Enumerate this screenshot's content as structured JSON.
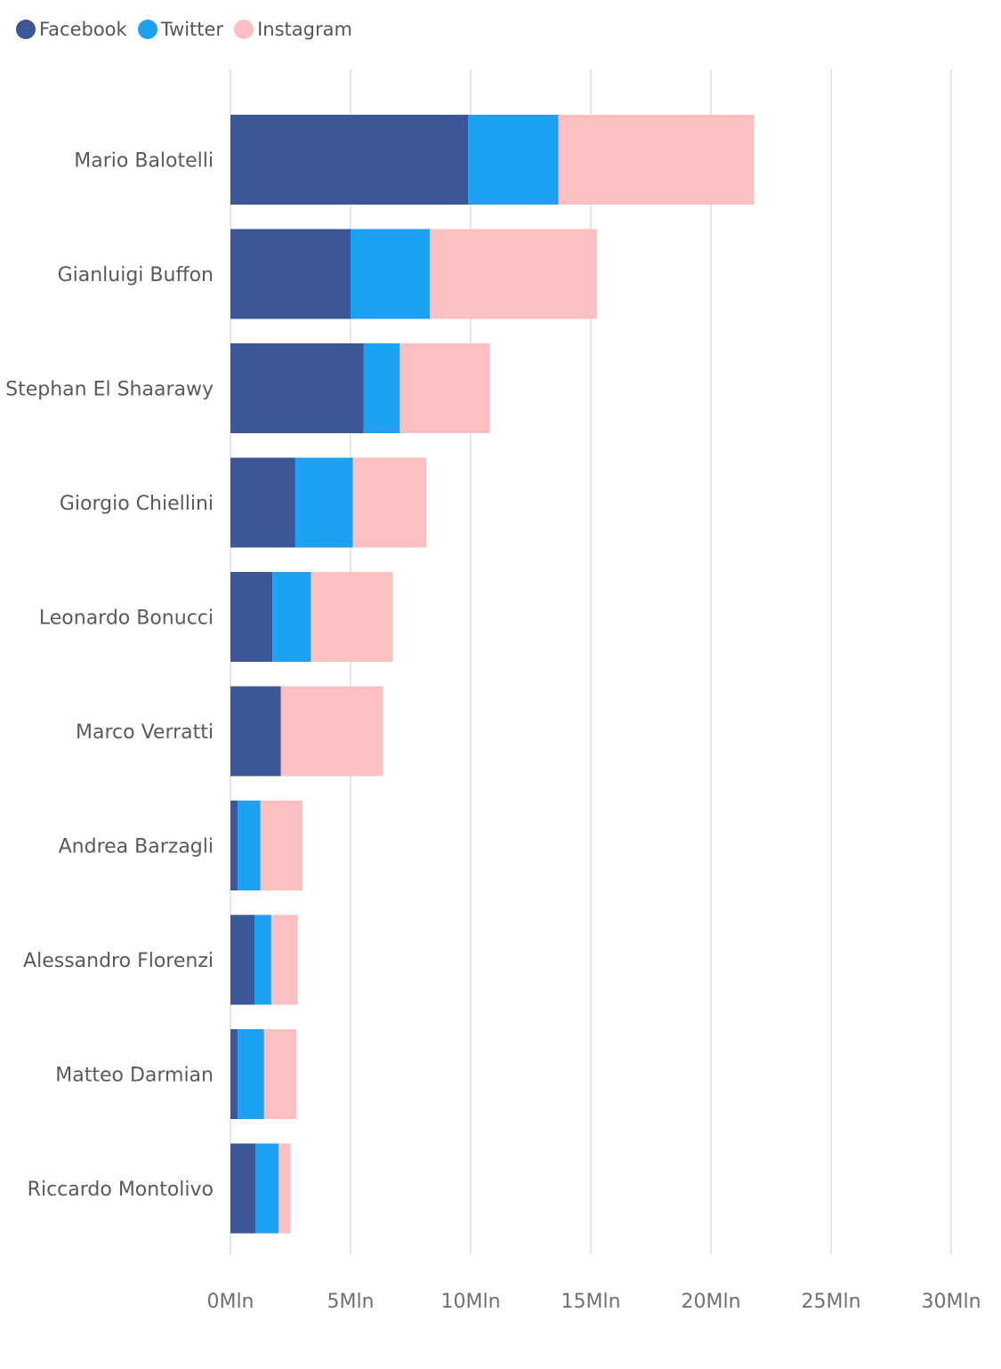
{
  "colors": {
    "Facebook": "#3b5796",
    "Twitter": "#1da1f2",
    "Instagram": "#fbc0bf",
    "grid": "#e6e6e6",
    "label": "#5a5a5a",
    "tick": "#707070"
  },
  "legend": [
    {
      "name": "Facebook",
      "color": "#3b5796"
    },
    {
      "name": "Twitter",
      "color": "#1da1f2"
    },
    {
      "name": "Instagram",
      "color": "#fbc0bf"
    }
  ],
  "chart_data": {
    "type": "bar",
    "orientation": "horizontal",
    "stacked": true,
    "categories": [
      "Mario Balotelli",
      "Gianluigi Buffon",
      "Stephan El Shaarawy",
      "Giorgio Chiellini",
      "Leonardo Bonucci",
      "Marco Verratti",
      "Andrea Barzagli",
      "Alessandro Florenzi",
      "Matteo Darmian",
      "Riccardo Montolivo"
    ],
    "series": [
      {
        "name": "Facebook",
        "values": [
          9.9,
          5.0,
          5.55,
          2.7,
          1.75,
          2.1,
          0.3,
          1.0,
          0.3,
          1.05
        ]
      },
      {
        "name": "Twitter",
        "values": [
          3.75,
          3.3,
          1.5,
          2.4,
          1.6,
          0.0,
          0.95,
          0.7,
          1.1,
          0.95
        ]
      },
      {
        "name": "Instagram",
        "values": [
          8.15,
          6.95,
          3.75,
          3.05,
          3.4,
          4.25,
          1.75,
          1.1,
          1.35,
          0.5
        ]
      }
    ],
    "xlim": [
      0,
      30
    ],
    "xticks": [
      "0Mln",
      "5Mln",
      "10Mln",
      "15Mln",
      "20Mln",
      "25Mln",
      "30Mln"
    ],
    "xtick_values": [
      0,
      5,
      10,
      15,
      20,
      25,
      30
    ],
    "grid": true,
    "legend_position": "top-left"
  }
}
